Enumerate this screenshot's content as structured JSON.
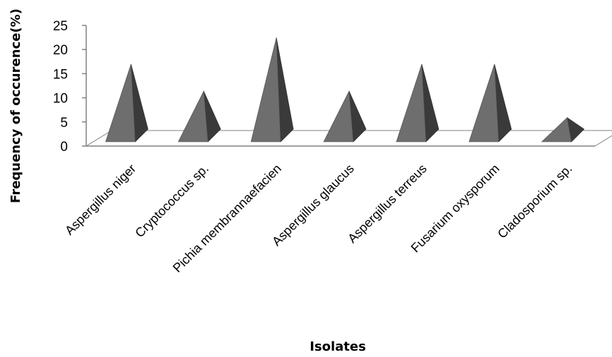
{
  "chart_data": {
    "type": "bar",
    "bar_shape": "3d-pyramid",
    "categories": [
      "Aspergillus niger",
      "Cryptococcus sp.",
      "Pichia membrannaefacien",
      "Aspergillus glaucus",
      "Aspergillus terreus",
      "Fusarium oxysporum",
      "Cladosporium sp."
    ],
    "values": [
      16.7,
      11.1,
      22.2,
      11.1,
      16.7,
      16.7,
      5.6
    ],
    "xlabel": "Isolates",
    "ylabel": "Frequency of occurence(%)",
    "ylim": [
      0,
      25
    ],
    "yticks": [
      "0",
      "5",
      "10",
      "15",
      "20",
      "25"
    ],
    "grid": false,
    "legend": "none",
    "colors": {
      "front": "#6e6e6e",
      "side": "#3a3a3a",
      "floor": "#ffffff",
      "axis": "#808080"
    }
  }
}
